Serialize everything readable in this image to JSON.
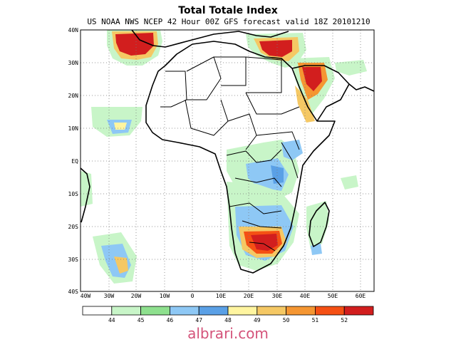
{
  "title": "Total Totale Index",
  "subtitle": "US NOAA NWS NCEP 42 Hour 00Z GFS forecast valid 18Z 20101210",
  "lat_labels": [
    "40N",
    "30N",
    "20N",
    "10N",
    "EQ",
    "10S",
    "20S",
    "30S",
    "40S"
  ],
  "lon_labels": [
    "40W",
    "30W",
    "20W",
    "10W",
    "0",
    "10E",
    "20E",
    "30E",
    "40E",
    "50E",
    "60E"
  ],
  "colorbar": {
    "labels": [
      "44",
      "45",
      "46",
      "47",
      "48",
      "49",
      "50",
      "51",
      "52"
    ],
    "colors": [
      "#ffffff",
      "#c8f5c8",
      "#8ee08e",
      "#8ec8f5",
      "#5aa0e6",
      "#fff5a0",
      "#f5c864",
      "#f59632",
      "#f55014",
      "#d21e1e"
    ]
  },
  "map_colors": {
    "ocean_frame": "#000000",
    "grid": "#7a7a7a"
  },
  "watermark": "albrari.com"
}
